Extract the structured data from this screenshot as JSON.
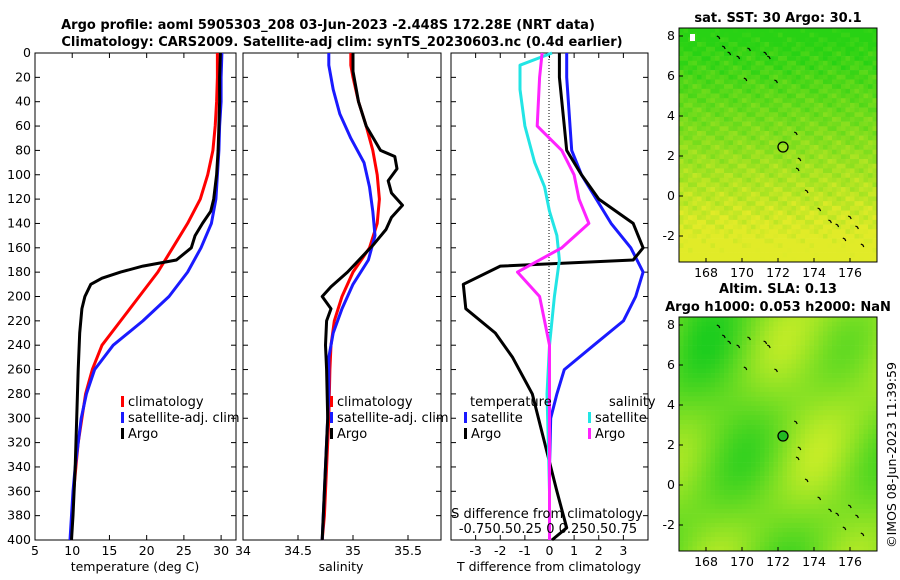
{
  "figure": {
    "title_line1": "Argo profile: aoml 5905303_208 03-Jun-2023 -2.448S 172.28E (NRT data)",
    "title_line2": "Climatology: CARS2009. Satellite-adj clim: synTS_20230603.nc (0.4d earlier)",
    "copyright": "©IMOS 08-Jun-2023 11:39:59"
  },
  "colors": {
    "climatology": "#ff0000",
    "satellite": "#1a1aff",
    "argo": "#000000",
    "sal_satellite": "#22e5e5",
    "sal_argo": "#ff22ff"
  },
  "chart_data": [
    {
      "type": "line",
      "id": "temperature",
      "xlabel": "temperature (deg C)",
      "ylabel": "",
      "xlim": [
        5,
        32
      ],
      "ylim": [
        400,
        0
      ],
      "xticks": [
        "5",
        "10",
        "15",
        "20",
        "25",
        "30"
      ],
      "yticks": [
        "0",
        "20",
        "40",
        "60",
        "80",
        "100",
        "120",
        "140",
        "160",
        "180",
        "200",
        "220",
        "240",
        "260",
        "280",
        "300",
        "320",
        "340",
        "360",
        "380",
        "400"
      ],
      "legend": [
        "climatology",
        "satellite-adj. clim",
        "Argo"
      ],
      "series": [
        {
          "name": "climatology",
          "color": "#ff0000",
          "points": [
            [
              29.5,
              0
            ],
            [
              29.5,
              20
            ],
            [
              29.4,
              40
            ],
            [
              29.2,
              60
            ],
            [
              28.9,
              80
            ],
            [
              28.2,
              100
            ],
            [
              27.2,
              120
            ],
            [
              25.5,
              140
            ],
            [
              23.5,
              160
            ],
            [
              21.5,
              180
            ],
            [
              19.0,
              200
            ],
            [
              16.5,
              220
            ],
            [
              14.0,
              240
            ],
            [
              12.7,
              260
            ],
            [
              11.8,
              280
            ],
            [
              11.3,
              300
            ],
            [
              10.8,
              320
            ],
            [
              10.5,
              340
            ],
            [
              10.2,
              360
            ],
            [
              10.0,
              380
            ],
            [
              9.8,
              400
            ]
          ]
        },
        {
          "name": "satellite-adj. clim",
          "color": "#1a1aff",
          "points": [
            [
              30.1,
              0
            ],
            [
              30.0,
              20
            ],
            [
              30.0,
              40
            ],
            [
              29.8,
              60
            ],
            [
              29.7,
              80
            ],
            [
              29.5,
              100
            ],
            [
              29.3,
              120
            ],
            [
              28.7,
              140
            ],
            [
              27.3,
              160
            ],
            [
              25.5,
              180
            ],
            [
              23.0,
              200
            ],
            [
              19.5,
              220
            ],
            [
              15.5,
              240
            ],
            [
              13.0,
              260
            ],
            [
              11.9,
              280
            ],
            [
              11.2,
              300
            ],
            [
              10.8,
              320
            ],
            [
              10.4,
              340
            ],
            [
              10.1,
              360
            ],
            [
              9.9,
              380
            ],
            [
              9.7,
              400
            ]
          ]
        },
        {
          "name": "Argo",
          "color": "#000000",
          "points": [
            [
              29.9,
              0
            ],
            [
              29.8,
              20
            ],
            [
              29.8,
              40
            ],
            [
              29.7,
              60
            ],
            [
              29.6,
              80
            ],
            [
              29.4,
              100
            ],
            [
              29.0,
              120
            ],
            [
              28.6,
              130
            ],
            [
              27.5,
              140
            ],
            [
              26.5,
              150
            ],
            [
              26.0,
              160
            ],
            [
              24.0,
              170
            ],
            [
              19.5,
              175
            ],
            [
              16.5,
              180
            ],
            [
              14.0,
              185
            ],
            [
              12.5,
              190
            ],
            [
              11.7,
              200
            ],
            [
              11.3,
              210
            ],
            [
              11.0,
              230
            ],
            [
              10.8,
              260
            ],
            [
              10.6,
              300
            ],
            [
              10.4,
              340
            ],
            [
              10.1,
              380
            ],
            [
              9.9,
              400
            ]
          ]
        }
      ]
    },
    {
      "type": "line",
      "id": "salinity",
      "xlabel": "salinity",
      "ylabel": "",
      "xlim": [
        34.0,
        35.8
      ],
      "ylim": [
        400,
        0
      ],
      "xticks": [
        "34",
        "34.5",
        "35",
        "35.5"
      ],
      "legend": [
        "climatology",
        "satellite-adj. clim",
        "Argo"
      ],
      "series": [
        {
          "name": "climatology",
          "color": "#ff0000",
          "points": [
            [
              34.98,
              0
            ],
            [
              34.98,
              10
            ],
            [
              35.0,
              20
            ],
            [
              35.05,
              40
            ],
            [
              35.12,
              60
            ],
            [
              35.18,
              80
            ],
            [
              35.22,
              100
            ],
            [
              35.24,
              120
            ],
            [
              35.22,
              140
            ],
            [
              35.15,
              160
            ],
            [
              35.0,
              180
            ],
            [
              34.9,
              200
            ],
            [
              34.83,
              220
            ],
            [
              34.8,
              240
            ],
            [
              34.79,
              260
            ],
            [
              34.78,
              300
            ],
            [
              34.76,
              340
            ],
            [
              34.74,
              380
            ],
            [
              34.72,
              400
            ]
          ]
        },
        {
          "name": "satellite-adj. clim",
          "color": "#1a1aff",
          "points": [
            [
              34.78,
              0
            ],
            [
              34.78,
              10
            ],
            [
              34.82,
              30
            ],
            [
              34.88,
              50
            ],
            [
              34.98,
              70
            ],
            [
              35.1,
              90
            ],
            [
              35.15,
              110
            ],
            [
              35.18,
              130
            ],
            [
              35.2,
              150
            ],
            [
              35.14,
              170
            ],
            [
              35.0,
              190
            ],
            [
              34.9,
              210
            ],
            [
              34.82,
              230
            ],
            [
              34.78,
              250
            ],
            [
              34.78,
              280
            ],
            [
              34.76,
              320
            ],
            [
              34.74,
              360
            ],
            [
              34.72,
              400
            ]
          ]
        },
        {
          "name": "Argo",
          "color": "#000000",
          "points": [
            [
              35.0,
              0
            ],
            [
              35.0,
              15
            ],
            [
              35.05,
              40
            ],
            [
              35.12,
              60
            ],
            [
              35.25,
              80
            ],
            [
              35.38,
              85
            ],
            [
              35.4,
              95
            ],
            [
              35.32,
              105
            ],
            [
              35.35,
              115
            ],
            [
              35.45,
              125
            ],
            [
              35.35,
              135
            ],
            [
              35.3,
              145
            ],
            [
              35.18,
              158
            ],
            [
              34.95,
              180
            ],
            [
              34.8,
              192
            ],
            [
              34.72,
              200
            ],
            [
              34.8,
              210
            ],
            [
              34.76,
              220
            ],
            [
              34.75,
              240
            ],
            [
              34.76,
              260
            ],
            [
              34.77,
              300
            ],
            [
              34.75,
              340
            ],
            [
              34.73,
              380
            ],
            [
              34.72,
              400
            ]
          ]
        }
      ]
    },
    {
      "type": "line",
      "id": "difference",
      "xlabel": "T difference from climatology",
      "xlabel_top": "S difference from climatology",
      "xlim": [
        -4,
        4
      ],
      "ylim": [
        400,
        0
      ],
      "xticks": [
        "-3",
        "-2",
        "-1",
        "0",
        "1",
        "2",
        "3"
      ],
      "top_ticks": [
        "-0.75",
        "0.5",
        "0.25",
        "0",
        "0.25",
        "0.5",
        "0.75"
      ],
      "top_ticks_display": "-0.750.50.25  0  0.250.50.75",
      "legend_left_title": "temperature",
      "legend_right_title": "salinity",
      "legend_left": [
        "satellite",
        "Argo"
      ],
      "legend_right": [
        "satellite",
        "Argo"
      ],
      "series": [
        {
          "name": "T satellite",
          "color": "#1a1aff",
          "points": [
            [
              0.7,
              0
            ],
            [
              0.7,
              20
            ],
            [
              0.8,
              50
            ],
            [
              0.9,
              80
            ],
            [
              1.3,
              100
            ],
            [
              1.9,
              120
            ],
            [
              2.5,
              140
            ],
            [
              3.3,
              160
            ],
            [
              3.8,
              180
            ],
            [
              3.5,
              200
            ],
            [
              3.0,
              220
            ],
            [
              1.8,
              240
            ],
            [
              0.6,
              260
            ],
            [
              0.3,
              280
            ],
            [
              0.05,
              300
            ],
            [
              0,
              340
            ],
            [
              0,
              400
            ]
          ]
        },
        {
          "name": "T Argo",
          "color": "#000000",
          "points": [
            [
              0.4,
              0
            ],
            [
              0.4,
              20
            ],
            [
              0.6,
              60
            ],
            [
              0.7,
              80
            ],
            [
              1.3,
              100
            ],
            [
              2.0,
              120
            ],
            [
              3.4,
              140
            ],
            [
              3.8,
              160
            ],
            [
              3.4,
              170
            ],
            [
              -2.0,
              175
            ],
            [
              -3.5,
              190
            ],
            [
              -3.4,
              210
            ],
            [
              -2.2,
              230
            ],
            [
              -1.5,
              250
            ],
            [
              -0.7,
              280
            ],
            [
              -0.2,
              320
            ],
            [
              0.3,
              360
            ],
            [
              0.7,
              390
            ],
            [
              0.1,
              400
            ]
          ]
        },
        {
          "name": "S satellite",
          "color": "#22e5e5",
          "points": [
            [
              0.1,
              0
            ],
            [
              -1.2,
              10
            ],
            [
              -1.2,
              30
            ],
            [
              -1.0,
              60
            ],
            [
              -0.6,
              90
            ],
            [
              -0.2,
              110
            ],
            [
              0,
              130
            ],
            [
              0.3,
              150
            ],
            [
              0.4,
              170
            ],
            [
              0.2,
              200
            ],
            [
              0,
              240
            ],
            [
              -0.1,
              280
            ],
            [
              -0.05,
              320
            ],
            [
              0,
              360
            ],
            [
              0,
              400
            ]
          ]
        },
        {
          "name": "S Argo",
          "color": "#ff22ff",
          "points": [
            [
              -0.3,
              0
            ],
            [
              -0.4,
              20
            ],
            [
              -0.5,
              60
            ],
            [
              0.5,
              80
            ],
            [
              1.0,
              100
            ],
            [
              1.2,
              120
            ],
            [
              1.6,
              140
            ],
            [
              0.5,
              160
            ],
            [
              -1.3,
              180
            ],
            [
              -0.4,
              200
            ],
            [
              0.0,
              240
            ],
            [
              0,
              280
            ],
            [
              0,
              320
            ],
            [
              0,
              360
            ],
            [
              0,
              400
            ]
          ]
        }
      ]
    },
    {
      "type": "heatmap",
      "id": "sst_map",
      "title": "sat. SST: 30 Argo: 30.1",
      "xlim": [
        166.5,
        177.5
      ],
      "ylim": [
        -3.3,
        8.4
      ],
      "xticks": [
        "168",
        "170",
        "172",
        "174",
        "176"
      ],
      "yticks": [
        "-2",
        "0",
        "2",
        "4",
        "6",
        "8"
      ],
      "marker": {
        "lon": 172.28,
        "lat": 2.45,
        "filled": false
      }
    },
    {
      "type": "heatmap",
      "id": "sla_map",
      "title_line1": "Altim. SLA: 0.13",
      "title_line2": "Argo h1000: 0.053 h2000: NaN",
      "xlim": [
        166.5,
        177.5
      ],
      "ylim": [
        -3.3,
        8.4
      ],
      "xticks": [
        "168",
        "170",
        "172",
        "174",
        "176"
      ],
      "yticks": [
        "-2",
        "0",
        "2",
        "4",
        "6",
        "8"
      ],
      "marker": {
        "lon": 172.28,
        "lat": 2.45,
        "filled": true
      }
    }
  ]
}
